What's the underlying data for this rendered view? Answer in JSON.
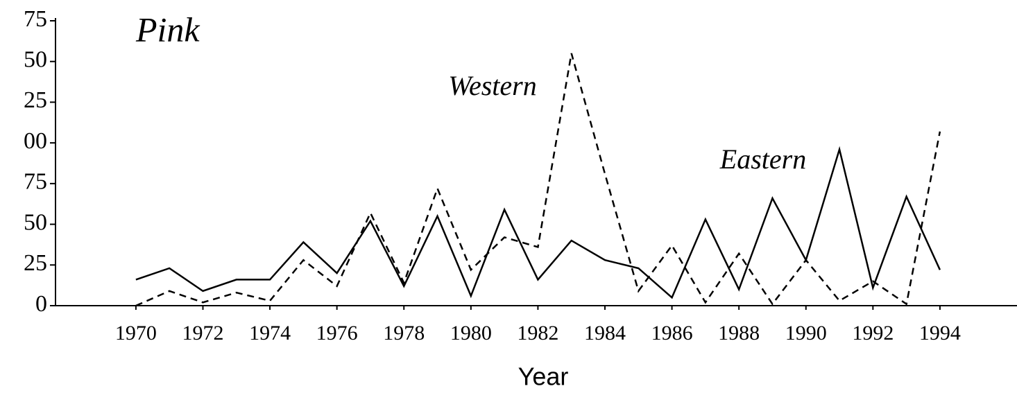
{
  "chart_data": {
    "type": "line",
    "title": "Pink",
    "x_label": "Year",
    "x": [
      1970,
      1971,
      1972,
      1973,
      1974,
      1975,
      1976,
      1977,
      1978,
      1979,
      1980,
      1981,
      1982,
      1983,
      1984,
      1985,
      1986,
      1987,
      1988,
      1989,
      1990,
      1991,
      1992,
      1993,
      1994
    ],
    "series": [
      {
        "name": "Eastern",
        "color": "#000000",
        "style": "solid",
        "values": [
          16,
          23,
          9,
          16,
          16,
          39,
          20,
          52,
          12,
          55,
          6,
          59,
          16,
          40,
          28,
          23,
          5,
          53,
          10,
          66,
          28,
          96,
          11,
          67,
          22
        ]
      },
      {
        "name": "Western",
        "color": "#000000",
        "style": "dashed",
        "values": [
          0,
          9,
          2,
          8,
          3,
          28,
          12,
          57,
          14,
          72,
          22,
          42,
          36,
          155,
          81,
          9,
          37,
          2,
          32,
          1,
          28,
          3,
          15,
          1,
          107
        ]
      }
    ],
    "xlim": [
      1967.6,
      1996.3
    ],
    "xticks": [
      1970,
      1972,
      1974,
      1976,
      1978,
      1980,
      1982,
      1984,
      1986,
      1988,
      1990,
      1992,
      1994
    ],
    "ylim": [
      0,
      175
    ],
    "yticks": [
      0,
      25,
      50,
      75,
      {
        "value": 100,
        "label": "00"
      },
      {
        "value": 125,
        "label": "25"
      },
      {
        "value": 150,
        "label": "50"
      },
      {
        "value": 175,
        "label": "75"
      }
    ],
    "grid": false
  }
}
